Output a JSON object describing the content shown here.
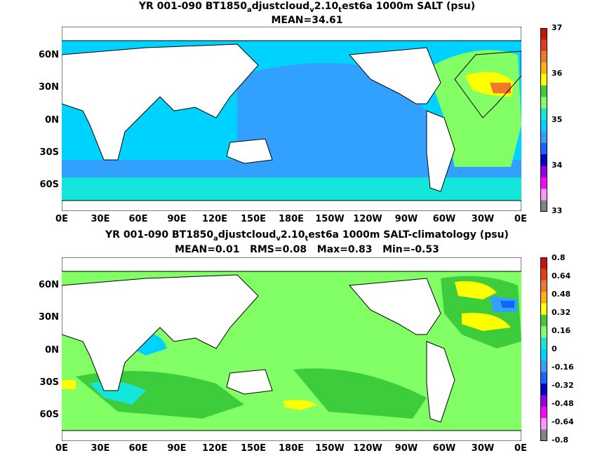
{
  "maps": [
    {
      "title_parts": [
        "YR 001-090 BT1850",
        "a",
        "djustcloud",
        "v",
        "2.10",
        "t",
        "est6a 1000m SALT (psu)"
      ],
      "stats": "MEAN=34.61",
      "lat_labels": [
        "60N",
        "30N",
        "0N",
        "30S",
        "60S"
      ],
      "lon_labels": [
        "0E",
        "30E",
        "60E",
        "90E",
        "120E",
        "150E",
        "180E",
        "150W",
        "120W",
        "90W",
        "60W",
        "30W",
        "0E"
      ],
      "colorbar_labels": [
        "37",
        "36",
        "35",
        "34",
        "33"
      ],
      "colorbar_colors": [
        "#c8140a",
        "#e63c14",
        "#f07828",
        "#ffb400",
        "#ffff00",
        "#3ccc3c",
        "#82ff64",
        "#14e6dc",
        "#00d2ff",
        "#32a0ff",
        "#1464ff",
        "#0000c8",
        "#9600dc",
        "#ff00ff",
        "#ff96ff",
        "#828282"
      ]
    },
    {
      "title_parts": [
        "YR 001-090 BT1850",
        "a",
        "djustcloud",
        "v",
        "2.10",
        "t",
        "est6a 1000m SALT-climatology (psu)"
      ],
      "stats": "MEAN=0.01   RMS=0.08   Max=0.83   Min=-0.53",
      "lat_labels": [
        "60N",
        "30N",
        "0N",
        "30S",
        "60S"
      ],
      "lon_labels": [
        "0E",
        "30E",
        "60E",
        "90E",
        "120E",
        "150E",
        "180E",
        "150W",
        "120W",
        "90W",
        "60W",
        "30W",
        "0E"
      ],
      "colorbar_labels": [
        "0.8",
        "0.64",
        "0.48",
        "0.32",
        "0.16",
        "0",
        "-0.16",
        "-0.32",
        "-0.48",
        "-0.64",
        "-0.8"
      ],
      "colorbar_colors": [
        "#c8140a",
        "#e63c14",
        "#f07828",
        "#ffb400",
        "#ffff00",
        "#3ccc3c",
        "#82ff64",
        "#14e6dc",
        "#00d2ff",
        "#32a0ff",
        "#1464ff",
        "#0000c8",
        "#9600dc",
        "#ff00ff",
        "#ff96ff",
        "#828282"
      ]
    }
  ],
  "colors": {
    "land": "#ffffff",
    "salinity_base": "#00d2ff",
    "salinity_pacific": "#32a0ff",
    "salinity_atlantic": "#82ff64",
    "anomaly_base": "#82ff64",
    "anomaly_positive": "#ffff00",
    "anomaly_negative": "#32a0ff"
  }
}
